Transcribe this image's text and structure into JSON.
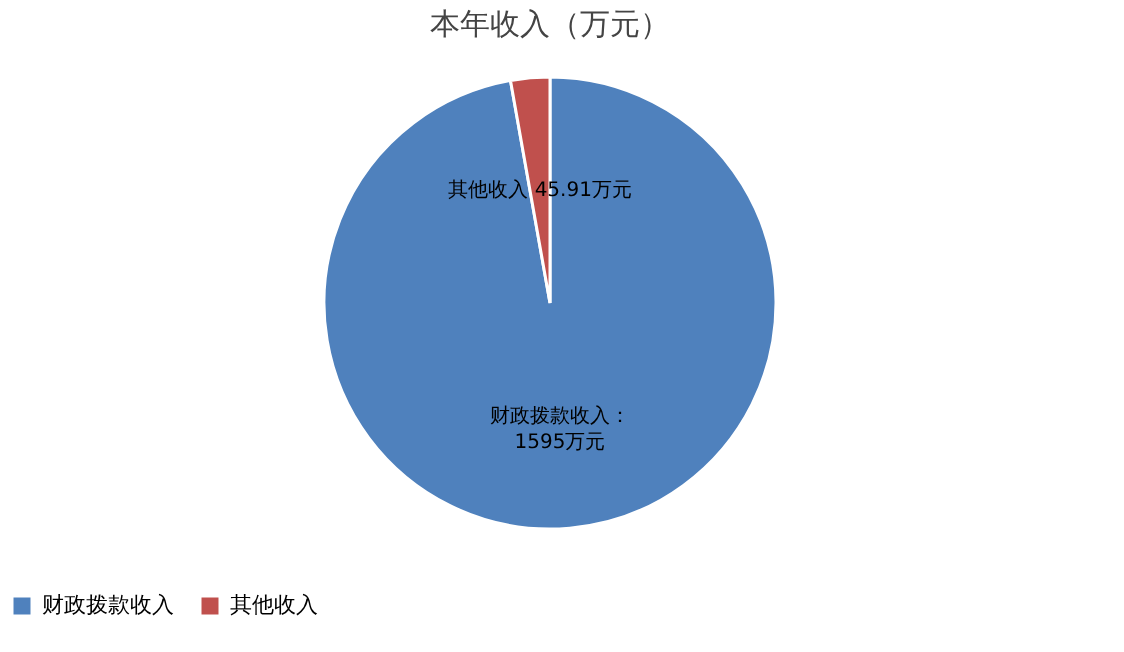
{
  "chart_data": {
    "type": "pie",
    "title": "本年收入（万元）",
    "categories": [
      "财政拨款收入",
      "其他收入"
    ],
    "values": [
      1595,
      45.91
    ],
    "colors": [
      "#4f81bd",
      "#c0504d"
    ],
    "value_labels": [
      "财政拨款收入：\n1595万元",
      "其他收入 45.91万元"
    ],
    "legend": "bottom"
  }
}
